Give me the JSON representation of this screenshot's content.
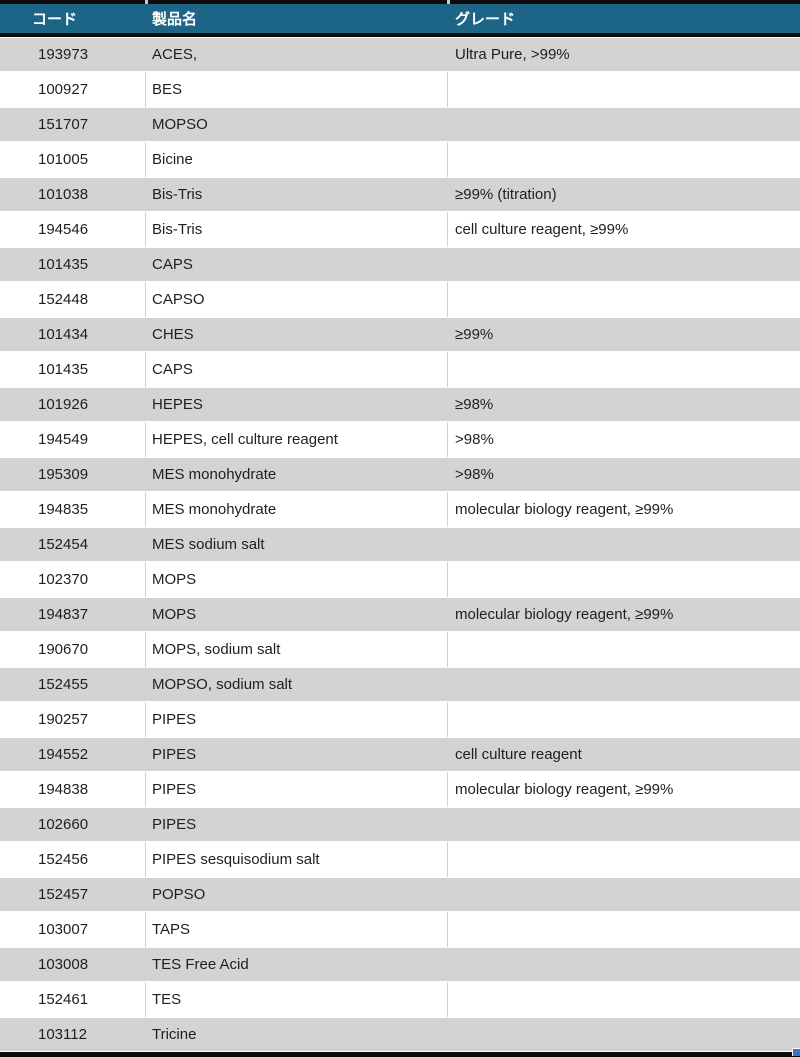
{
  "table": {
    "columns": [
      {
        "key": "code",
        "label": "コード"
      },
      {
        "key": "name",
        "label": "製品名"
      },
      {
        "key": "grade",
        "label": "グレード"
      }
    ],
    "rows": [
      {
        "code": "193973",
        "name": "ACES,",
        "grade": "Ultra Pure, >99%"
      },
      {
        "code": "100927",
        "name": "BES",
        "grade": ""
      },
      {
        "code": "151707",
        "name": "MOPSO",
        "grade": ""
      },
      {
        "code": "101005",
        "name": "Bicine",
        "grade": ""
      },
      {
        "code": "101038",
        "name": "Bis-Tris",
        "grade": "≥99% (titration)"
      },
      {
        "code": "194546",
        "name": "Bis-Tris",
        "grade": "cell culture reagent, ≥99%"
      },
      {
        "code": "101435",
        "name": "CAPS",
        "grade": ""
      },
      {
        "code": "152448",
        "name": "CAPSO",
        "grade": ""
      },
      {
        "code": "101434",
        "name": "CHES",
        "grade": "≥99%"
      },
      {
        "code": "101435",
        "name": "CAPS",
        "grade": ""
      },
      {
        "code": "101926",
        "name": "HEPES",
        "grade": "≥98%"
      },
      {
        "code": "194549",
        "name": "HEPES, cell culture reagent",
        "grade": ">98%"
      },
      {
        "code": "195309",
        "name": "MES monohydrate",
        "grade": ">98%"
      },
      {
        "code": "194835",
        "name": "MES monohydrate",
        "grade": "molecular biology reagent, ≥99%"
      },
      {
        "code": "152454",
        "name": "MES sodium salt",
        "grade": ""
      },
      {
        "code": "102370",
        "name": "MOPS",
        "grade": ""
      },
      {
        "code": "194837",
        "name": "MOPS",
        "grade": "molecular biology reagent, ≥99%"
      },
      {
        "code": "190670",
        "name": "MOPS, sodium salt",
        "grade": ""
      },
      {
        "code": "152455",
        "name": "MOPSO, sodium salt",
        "grade": ""
      },
      {
        "code": "190257",
        "name": "PIPES",
        "grade": ""
      },
      {
        "code": "194552",
        "name": "PIPES",
        "grade": "cell culture reagent"
      },
      {
        "code": "194838",
        "name": "PIPES",
        "grade": "molecular biology reagent, ≥99%"
      },
      {
        "code": "102660",
        "name": "PIPES",
        "grade": ""
      },
      {
        "code": "152456",
        "name": "PIPES sesquisodium salt",
        "grade": ""
      },
      {
        "code": "152457",
        "name": "POPSO",
        "grade": ""
      },
      {
        "code": "103007",
        "name": "TAPS",
        "grade": ""
      },
      {
        "code": "103008",
        "name": "TES Free Acid",
        "grade": ""
      },
      {
        "code": "152461",
        "name": "TES",
        "grade": ""
      },
      {
        "code": "103112",
        "name": "Tricine",
        "grade": ""
      }
    ]
  },
  "colors": {
    "header_bg": "#1c6586",
    "header_text": "#ffffff",
    "row_alt_bg": "#d3d3d3",
    "row_bg": "#ffffff",
    "text": "#1f1f1f",
    "border_dark": "#0c0c0c",
    "grid_line": "#d2d2d2",
    "fill_handle": "#4470c8"
  }
}
